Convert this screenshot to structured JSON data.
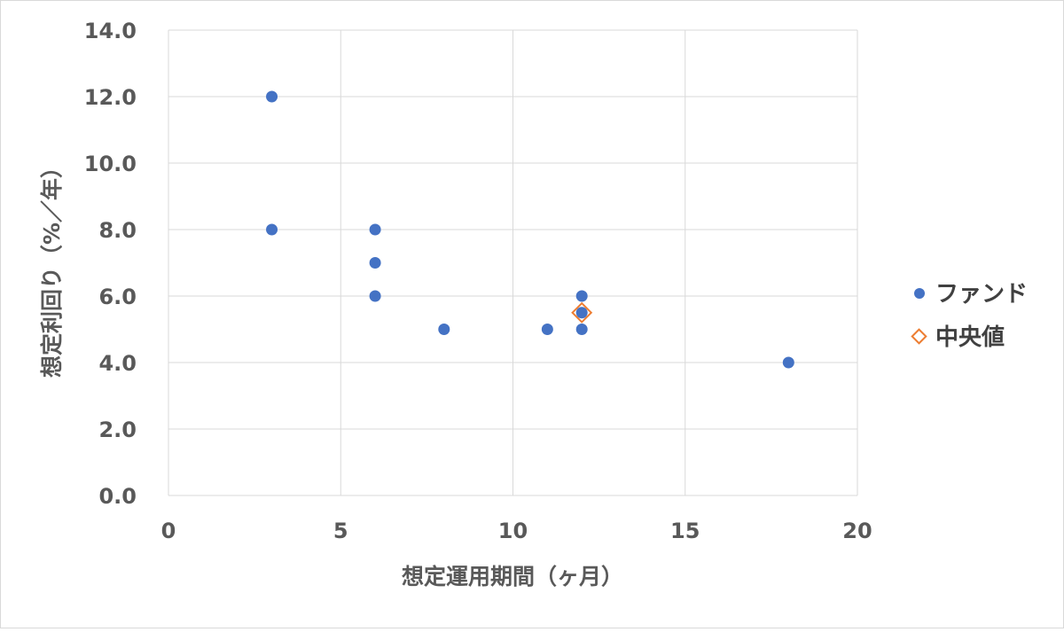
{
  "chart_data": {
    "type": "scatter",
    "xlabel": "想定運用期間（ヶ月）",
    "ylabel": "想定利回り（%／年）",
    "xlim": [
      0,
      20
    ],
    "ylim": [
      0,
      14
    ],
    "x_ticks": [
      "0",
      "5",
      "10",
      "15",
      "20"
    ],
    "y_ticks": [
      "0.0",
      "2.0",
      "4.0",
      "6.0",
      "8.0",
      "10.0",
      "12.0",
      "14.0"
    ],
    "grid": true,
    "legend_position": "right",
    "series": [
      {
        "name": "ファンド",
        "color": "#4472c4",
        "marker": "circle",
        "points": [
          {
            "x": 3,
            "y": 12.0
          },
          {
            "x": 3,
            "y": 8.0
          },
          {
            "x": 6,
            "y": 8.0
          },
          {
            "x": 6,
            "y": 7.0
          },
          {
            "x": 6,
            "y": 6.0
          },
          {
            "x": 8,
            "y": 5.0
          },
          {
            "x": 11,
            "y": 5.0
          },
          {
            "x": 12,
            "y": 6.0
          },
          {
            "x": 12,
            "y": 5.5
          },
          {
            "x": 12,
            "y": 5.0
          },
          {
            "x": 18,
            "y": 4.0
          }
        ]
      },
      {
        "name": "中央値",
        "color": "#ed7d31",
        "marker": "diamond",
        "points": [
          {
            "x": 12,
            "y": 5.5
          }
        ]
      }
    ]
  }
}
